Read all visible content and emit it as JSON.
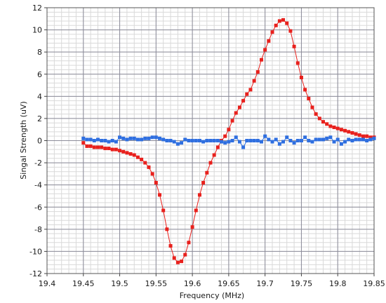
{
  "chart_data": {
    "type": "line",
    "title": "",
    "xlabel": "Frequency (MHz)",
    "ylabel": "Singal Strength (uV)",
    "xlim": [
      19.4,
      19.85
    ],
    "ylim": [
      -12,
      12
    ],
    "x_ticks": [
      "19.4",
      "19.45",
      "19.5",
      "19.55",
      "19.6",
      "19.65",
      "19.7",
      "19.75",
      "19.8",
      "19.85"
    ],
    "y_ticks": [
      "-12",
      "-10",
      "-8",
      "-6",
      "-4",
      "-2",
      "0",
      "2",
      "4",
      "6",
      "8",
      "10",
      "12"
    ],
    "grid": true,
    "legend": "none",
    "series": [
      {
        "color": "#e8201c",
        "x": [
          19.45,
          19.455,
          19.46,
          19.465,
          19.47,
          19.475,
          19.48,
          19.485,
          19.49,
          19.495,
          19.5,
          19.505,
          19.51,
          19.515,
          19.52,
          19.525,
          19.53,
          19.535,
          19.54,
          19.545,
          19.55,
          19.555,
          19.56,
          19.565,
          19.57,
          19.575,
          19.58,
          19.585,
          19.59,
          19.595,
          19.6,
          19.605,
          19.61,
          19.615,
          19.62,
          19.625,
          19.63,
          19.635,
          19.64,
          19.645,
          19.65,
          19.655,
          19.66,
          19.665,
          19.67,
          19.675,
          19.68,
          19.685,
          19.69,
          19.695,
          19.7,
          19.705,
          19.71,
          19.715,
          19.72,
          19.725,
          19.73,
          19.735,
          19.74,
          19.745,
          19.75,
          19.755,
          19.76,
          19.765,
          19.77,
          19.775,
          19.78,
          19.785,
          19.79,
          19.795,
          19.8,
          19.805,
          19.81,
          19.815,
          19.82,
          19.825,
          19.83,
          19.835,
          19.84,
          19.845,
          19.85
        ],
        "y": [
          -0.2,
          -0.5,
          -0.5,
          -0.6,
          -0.6,
          -0.6,
          -0.7,
          -0.7,
          -0.8,
          -0.8,
          -0.9,
          -1.0,
          -1.1,
          -1.2,
          -1.3,
          -1.5,
          -1.7,
          -2.0,
          -2.4,
          -3.0,
          -3.8,
          -4.9,
          -6.3,
          -8.0,
          -9.5,
          -10.6,
          -11.0,
          -10.9,
          -10.3,
          -9.2,
          -7.8,
          -6.3,
          -4.9,
          -3.8,
          -2.9,
          -2.0,
          -1.3,
          -0.6,
          0.0,
          0.4,
          1.0,
          1.8,
          2.5,
          3.0,
          3.6,
          4.2,
          4.6,
          5.4,
          6.2,
          7.3,
          8.2,
          9.0,
          9.8,
          10.4,
          10.8,
          10.9,
          10.6,
          9.9,
          8.5,
          7.0,
          5.7,
          4.6,
          3.8,
          3.0,
          2.4,
          2.0,
          1.7,
          1.5,
          1.3,
          1.2,
          1.1,
          1.0,
          0.9,
          0.8,
          0.7,
          0.6,
          0.5,
          0.4,
          0.4,
          0.3,
          0.3
        ]
      },
      {
        "color": "#2f6fe0",
        "x": [
          19.45,
          19.455,
          19.46,
          19.465,
          19.47,
          19.475,
          19.48,
          19.485,
          19.49,
          19.495,
          19.5,
          19.505,
          19.51,
          19.515,
          19.52,
          19.525,
          19.53,
          19.535,
          19.54,
          19.545,
          19.55,
          19.555,
          19.56,
          19.565,
          19.57,
          19.575,
          19.58,
          19.585,
          19.59,
          19.595,
          19.6,
          19.605,
          19.61,
          19.615,
          19.62,
          19.625,
          19.63,
          19.635,
          19.64,
          19.645,
          19.65,
          19.655,
          19.66,
          19.665,
          19.67,
          19.675,
          19.68,
          19.685,
          19.69,
          19.695,
          19.7,
          19.705,
          19.71,
          19.715,
          19.72,
          19.725,
          19.73,
          19.735,
          19.74,
          19.745,
          19.75,
          19.755,
          19.76,
          19.765,
          19.77,
          19.775,
          19.78,
          19.785,
          19.79,
          19.795,
          19.8,
          19.805,
          19.81,
          19.815,
          19.82,
          19.825,
          19.83,
          19.835,
          19.84,
          19.845,
          19.85
        ],
        "y": [
          0.2,
          0.1,
          0.1,
          0.0,
          0.1,
          0.0,
          0.0,
          -0.1,
          0.0,
          -0.1,
          0.3,
          0.2,
          0.1,
          0.2,
          0.2,
          0.1,
          0.1,
          0.2,
          0.2,
          0.3,
          0.3,
          0.2,
          0.1,
          0.0,
          0.0,
          -0.1,
          -0.3,
          -0.2,
          0.1,
          0.0,
          0.0,
          0.0,
          0.0,
          -0.1,
          0.0,
          0.0,
          0.0,
          0.0,
          -0.1,
          -0.2,
          -0.1,
          0.0,
          0.3,
          -0.1,
          -0.6,
          0.0,
          0.0,
          0.0,
          0.0,
          -0.1,
          0.4,
          0.1,
          -0.1,
          0.1,
          -0.3,
          -0.1,
          0.3,
          0.0,
          -0.2,
          0.0,
          0.0,
          0.3,
          0.0,
          -0.1,
          0.1,
          0.1,
          0.1,
          0.2,
          0.3,
          -0.1,
          0.1,
          -0.3,
          -0.1,
          0.1,
          0.0,
          0.1,
          0.1,
          0.1,
          0.0,
          0.1,
          0.2
        ]
      }
    ]
  }
}
